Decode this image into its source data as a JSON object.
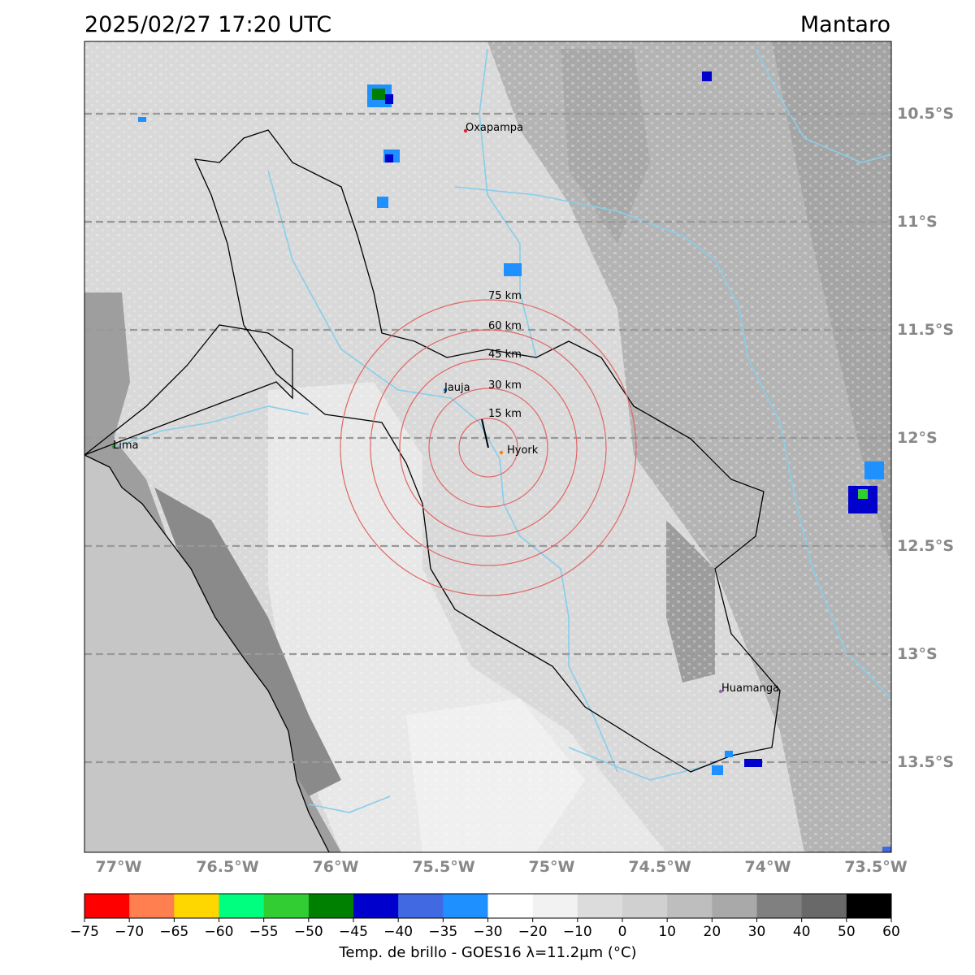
{
  "header": {
    "timestamp": "2025/02/27 17:20 UTC",
    "region": "Mantaro"
  },
  "map": {
    "longitude_labels": [
      "77°W",
      "76.5°W",
      "76°W",
      "75.5°W",
      "75°W",
      "74.5°W",
      "74°W",
      "73.5°W"
    ],
    "latitude_labels": [
      "10.5°S",
      "11°S",
      "11.5°S",
      "12°S",
      "12.5°S",
      "13°S",
      "13.5°S"
    ],
    "cities": [
      {
        "name": "Oxapampa",
        "marker_color": "#d62728"
      },
      {
        "name": "Jauja",
        "marker_color": "#1f77b4"
      },
      {
        "name": "Hyork",
        "marker_color": "#ff7f0e"
      },
      {
        "name": "Lima",
        "marker_color": "#2ca02c"
      },
      {
        "name": "Huamanga",
        "marker_color": "#9467bd"
      }
    ],
    "range_rings": [
      "15 km",
      "30 km",
      "45 km",
      "60 km",
      "75 km"
    ],
    "colors": {
      "ocean": "#c6c6c6",
      "river": "#87ceeb",
      "ring": "#e06666",
      "gridline": "#999999"
    }
  },
  "colorbar": {
    "label": "Temp. de brillo - GOES16 λ=11.2μm (°C)",
    "ticks": [
      "−75",
      "−70",
      "−65",
      "−60",
      "−55",
      "−50",
      "−45",
      "−40",
      "−35",
      "−30",
      "−20",
      "−10",
      "0",
      "10",
      "20",
      "30",
      "40",
      "50",
      "60"
    ],
    "colors": [
      "#ff0000",
      "#ff7f50",
      "#ffd700",
      "#00ff7f",
      "#32cd32",
      "#008000",
      "#0000cd",
      "#4169e1",
      "#1e90ff",
      "#ffffff",
      "#f2f2f2",
      "#dcdcdc",
      "#d0d0d0",
      "#bebebe",
      "#a9a9a9",
      "#808080",
      "#696969",
      "#000000"
    ]
  }
}
